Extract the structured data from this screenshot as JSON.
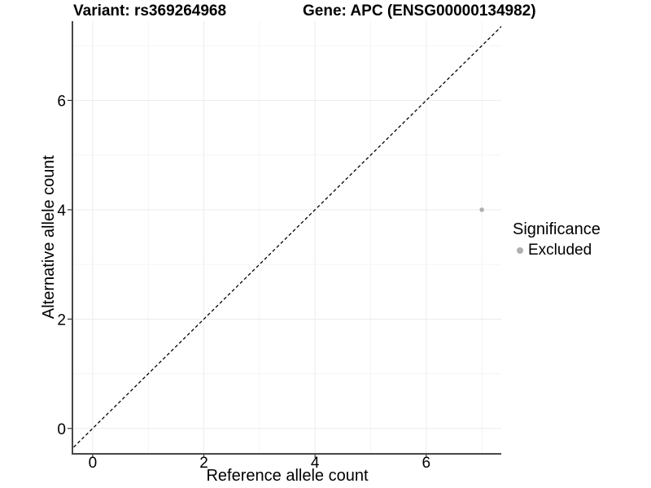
{
  "titles": {
    "variant": "Variant: rs369264968",
    "gene": "Gene: APC (ENSG00000134982)"
  },
  "legend": {
    "title": "Significance",
    "items": [
      {
        "label": "Excluded",
        "color": "#b0b0b0"
      }
    ]
  },
  "chart_data": {
    "type": "scatter",
    "title": "Variant: rs369264968   Gene: APC (ENSG00000134982)",
    "xlabel": "Reference allele count",
    "ylabel": "Alternative allele count",
    "xlim": [
      -0.35,
      7.35
    ],
    "ylim": [
      -0.45,
      7.45
    ],
    "xticks": [
      0,
      2,
      4,
      6
    ],
    "yticks": [
      0,
      2,
      4,
      6
    ],
    "xminor": [
      1,
      3,
      5,
      7
    ],
    "yminor": [
      1,
      3,
      5,
      7
    ],
    "grid": "major+minor",
    "legend_position": "right",
    "series": [
      {
        "name": "Excluded",
        "color": "#b0b0b0",
        "marker_radius": 2.8,
        "points": [
          {
            "x": 7,
            "y": 4
          }
        ]
      }
    ],
    "reference_line": {
      "type": "identity",
      "equation": "y = x",
      "style": "dashed",
      "color": "#000000"
    },
    "styles": {
      "grid_major": "#ececec",
      "grid_minor": "#f4f4f4",
      "axis_line": "#474747",
      "tick_color": "#333333",
      "text_color": "#000000"
    }
  }
}
